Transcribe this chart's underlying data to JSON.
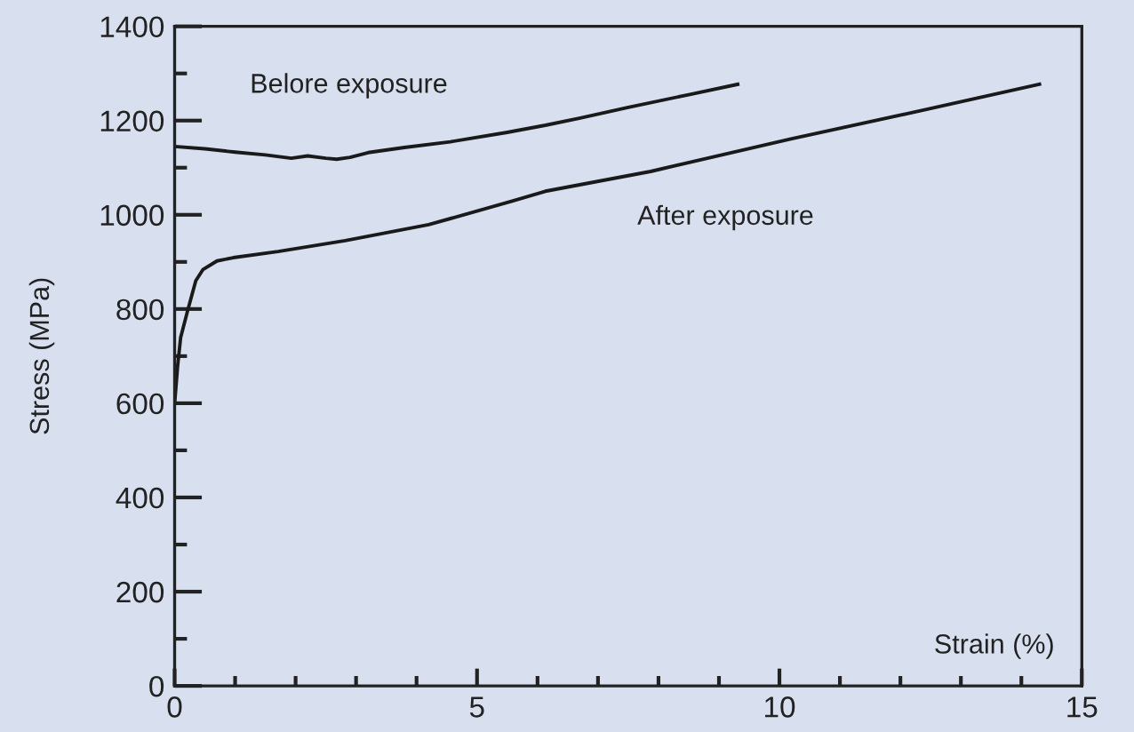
{
  "chart_data": {
    "type": "line",
    "xlabel": "Strain (%)",
    "ylabel": "Stress (MPa)",
    "series": [
      {
        "name": "Belore exposure",
        "color": "#1a1a1a",
        "x": [
          0,
          0.5,
          1,
          1.5,
          1.93,
          2.2,
          2.5,
          2.68,
          2.9,
          3.2,
          3.8,
          4.56,
          5.5,
          6.13,
          6.69,
          7.5,
          8.5,
          9.31
        ],
        "values": [
          1145,
          1140,
          1133,
          1127,
          1120,
          1125,
          1120,
          1118,
          1122,
          1132,
          1143,
          1155,
          1175,
          1190,
          1205,
          1228,
          1255,
          1277
        ]
      },
      {
        "name": "After exposure",
        "color": "#1a1a1a",
        "x": [
          0,
          0.05,
          0.1,
          0.22,
          0.35,
          0.47,
          0.7,
          0.97,
          1.71,
          2.82,
          4.2,
          5.58,
          6.13,
          7.87,
          10.19,
          12.3,
          14.3
        ],
        "values": [
          600,
          680,
          740,
          799,
          860,
          884,
          902,
          909,
          922,
          945,
          979,
          1029,
          1050,
          1092,
          1161,
          1220,
          1277
        ]
      }
    ],
    "xlim": [
      0,
      15
    ],
    "ylim": [
      0,
      1400
    ],
    "xticks": [
      0,
      {
        "value": 1,
        "label": null
      },
      {
        "value": 2,
        "label": null
      },
      {
        "value": 3,
        "label": null
      },
      {
        "value": 4,
        "label": null
      },
      5,
      {
        "value": 6,
        "label": null
      },
      {
        "value": 7,
        "label": null
      },
      {
        "value": 8,
        "label": null
      },
      {
        "value": 9,
        "label": null
      },
      10,
      {
        "value": 11,
        "label": null
      },
      {
        "value": 12,
        "label": null
      },
      {
        "value": 13,
        "label": null
      },
      {
        "value": 14,
        "label": null
      },
      15
    ],
    "yticks": [
      0,
      {
        "value": 100,
        "label": null
      },
      200,
      {
        "value": 300,
        "label": null
      },
      400,
      {
        "value": 500,
        "label": null
      },
      600,
      {
        "value": 700,
        "label": null
      },
      800,
      {
        "value": 900,
        "label": null
      },
      1000,
      {
        "value": 1100,
        "label": null
      },
      1200,
      {
        "value": 1300,
        "label": null
      },
      1400
    ],
    "grid": false,
    "legend": false,
    "marker": "none",
    "line_style": "solid"
  }
}
